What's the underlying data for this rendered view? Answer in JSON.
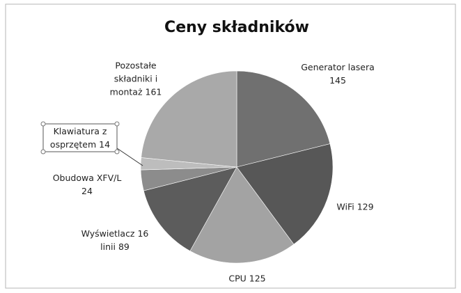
{
  "chart_data": {
    "type": "pie",
    "title": "Ceny składników",
    "categories": [
      "Generator lasera",
      "WiFi",
      "CPU",
      "Wyświetlacz 16 linii",
      "Obudowa XFV/L",
      "Klawiatura z osprzętem",
      "Pozostałe składniki i montaż"
    ],
    "values": [
      145,
      129,
      125,
      89,
      24,
      14,
      161
    ],
    "colors": [
      "#707070",
      "#575757",
      "#a3a3a3",
      "#5c5c5c",
      "#8c8c8c",
      "#bdbdbd",
      "#a9a9a9"
    ]
  }
}
